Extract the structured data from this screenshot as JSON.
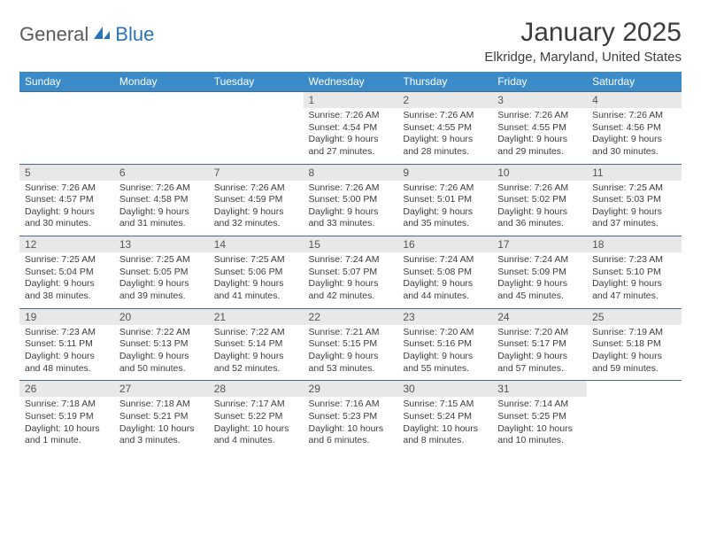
{
  "brand": {
    "word1": "General",
    "word2": "Blue"
  },
  "colors": {
    "header_bg": "#3b8bc8",
    "header_text": "#ffffff",
    "daynum_bg": "#e8e8e8",
    "row_border": "#4a6a8a",
    "brand_blue": "#2b74b8",
    "text": "#3c3c3c"
  },
  "title": "January 2025",
  "location": "Elkridge, Maryland, United States",
  "day_headers": [
    "Sunday",
    "Monday",
    "Tuesday",
    "Wednesday",
    "Thursday",
    "Friday",
    "Saturday"
  ],
  "weeks": [
    [
      null,
      null,
      null,
      {
        "n": "1",
        "sr": "7:26 AM",
        "ss": "4:54 PM",
        "dl": "9 hours and 27 minutes."
      },
      {
        "n": "2",
        "sr": "7:26 AM",
        "ss": "4:55 PM",
        "dl": "9 hours and 28 minutes."
      },
      {
        "n": "3",
        "sr": "7:26 AM",
        "ss": "4:55 PM",
        "dl": "9 hours and 29 minutes."
      },
      {
        "n": "4",
        "sr": "7:26 AM",
        "ss": "4:56 PM",
        "dl": "9 hours and 30 minutes."
      }
    ],
    [
      {
        "n": "5",
        "sr": "7:26 AM",
        "ss": "4:57 PM",
        "dl": "9 hours and 30 minutes."
      },
      {
        "n": "6",
        "sr": "7:26 AM",
        "ss": "4:58 PM",
        "dl": "9 hours and 31 minutes."
      },
      {
        "n": "7",
        "sr": "7:26 AM",
        "ss": "4:59 PM",
        "dl": "9 hours and 32 minutes."
      },
      {
        "n": "8",
        "sr": "7:26 AM",
        "ss": "5:00 PM",
        "dl": "9 hours and 33 minutes."
      },
      {
        "n": "9",
        "sr": "7:26 AM",
        "ss": "5:01 PM",
        "dl": "9 hours and 35 minutes."
      },
      {
        "n": "10",
        "sr": "7:26 AM",
        "ss": "5:02 PM",
        "dl": "9 hours and 36 minutes."
      },
      {
        "n": "11",
        "sr": "7:25 AM",
        "ss": "5:03 PM",
        "dl": "9 hours and 37 minutes."
      }
    ],
    [
      {
        "n": "12",
        "sr": "7:25 AM",
        "ss": "5:04 PM",
        "dl": "9 hours and 38 minutes."
      },
      {
        "n": "13",
        "sr": "7:25 AM",
        "ss": "5:05 PM",
        "dl": "9 hours and 39 minutes."
      },
      {
        "n": "14",
        "sr": "7:25 AM",
        "ss": "5:06 PM",
        "dl": "9 hours and 41 minutes."
      },
      {
        "n": "15",
        "sr": "7:24 AM",
        "ss": "5:07 PM",
        "dl": "9 hours and 42 minutes."
      },
      {
        "n": "16",
        "sr": "7:24 AM",
        "ss": "5:08 PM",
        "dl": "9 hours and 44 minutes."
      },
      {
        "n": "17",
        "sr": "7:24 AM",
        "ss": "5:09 PM",
        "dl": "9 hours and 45 minutes."
      },
      {
        "n": "18",
        "sr": "7:23 AM",
        "ss": "5:10 PM",
        "dl": "9 hours and 47 minutes."
      }
    ],
    [
      {
        "n": "19",
        "sr": "7:23 AM",
        "ss": "5:11 PM",
        "dl": "9 hours and 48 minutes."
      },
      {
        "n": "20",
        "sr": "7:22 AM",
        "ss": "5:13 PM",
        "dl": "9 hours and 50 minutes."
      },
      {
        "n": "21",
        "sr": "7:22 AM",
        "ss": "5:14 PM",
        "dl": "9 hours and 52 minutes."
      },
      {
        "n": "22",
        "sr": "7:21 AM",
        "ss": "5:15 PM",
        "dl": "9 hours and 53 minutes."
      },
      {
        "n": "23",
        "sr": "7:20 AM",
        "ss": "5:16 PM",
        "dl": "9 hours and 55 minutes."
      },
      {
        "n": "24",
        "sr": "7:20 AM",
        "ss": "5:17 PM",
        "dl": "9 hours and 57 minutes."
      },
      {
        "n": "25",
        "sr": "7:19 AM",
        "ss": "5:18 PM",
        "dl": "9 hours and 59 minutes."
      }
    ],
    [
      {
        "n": "26",
        "sr": "7:18 AM",
        "ss": "5:19 PM",
        "dl": "10 hours and 1 minute."
      },
      {
        "n": "27",
        "sr": "7:18 AM",
        "ss": "5:21 PM",
        "dl": "10 hours and 3 minutes."
      },
      {
        "n": "28",
        "sr": "7:17 AM",
        "ss": "5:22 PM",
        "dl": "10 hours and 4 minutes."
      },
      {
        "n": "29",
        "sr": "7:16 AM",
        "ss": "5:23 PM",
        "dl": "10 hours and 6 minutes."
      },
      {
        "n": "30",
        "sr": "7:15 AM",
        "ss": "5:24 PM",
        "dl": "10 hours and 8 minutes."
      },
      {
        "n": "31",
        "sr": "7:14 AM",
        "ss": "5:25 PM",
        "dl": "10 hours and 10 minutes."
      },
      null
    ]
  ],
  "labels": {
    "sunrise": "Sunrise:",
    "sunset": "Sunset:",
    "daylight": "Daylight:"
  }
}
